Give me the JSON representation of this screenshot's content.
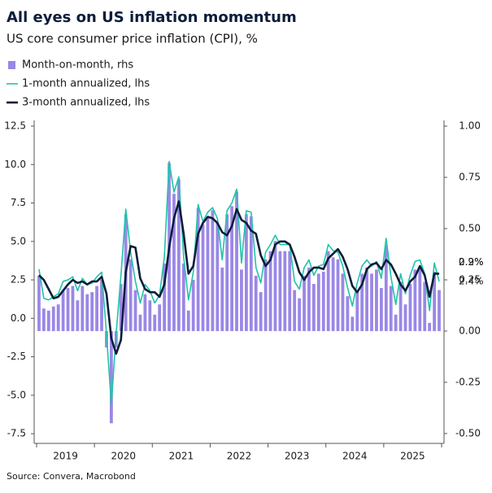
{
  "chart_data": {
    "type": "combo",
    "title": "All eyes on US inflation momentum",
    "subtitle": "US core consumer price inflation (CPI), %",
    "source": "Source: Convera, Macrobond",
    "categories": [
      null,
      null,
      null,
      null,
      null,
      null,
      "2019",
      null,
      null,
      null,
      null,
      null,
      null,
      null,
      null,
      null,
      null,
      null,
      "2020",
      null,
      null,
      null,
      null,
      null,
      null,
      null,
      null,
      null,
      null,
      null,
      "2021",
      null,
      null,
      null,
      null,
      null,
      null,
      null,
      null,
      null,
      null,
      null,
      "2022",
      null,
      null,
      null,
      null,
      null,
      null,
      null,
      null,
      null,
      null,
      null,
      "2023",
      null,
      null,
      null,
      null,
      null,
      null,
      null,
      null,
      null,
      null,
      null,
      "2024",
      null,
      null,
      null,
      null,
      null,
      null,
      null,
      null,
      null,
      null,
      null,
      "2025",
      null,
      null,
      null,
      null,
      null
    ],
    "ylim": [
      -8.13,
      12.87
    ],
    "yticks": [
      {
        "value": 12.5,
        "label": "12.5"
      },
      {
        "value": 10,
        "label": "10.0"
      },
      {
        "value": 7.5,
        "label": "7.5"
      },
      {
        "value": 5,
        "label": "5.0"
      },
      {
        "value": 2.5,
        "label": "2.5"
      },
      {
        "value": 0,
        "label": "0.0"
      },
      {
        "value": -2.5,
        "label": "-2.5"
      },
      {
        "value": -5,
        "label": "-5.0"
      },
      {
        "value": -7.5,
        "label": "-7.5"
      }
    ],
    "y2lim": [
      -0.548,
      1.028
    ],
    "y2ticks": [
      {
        "value": 1,
        "label": "1.00"
      },
      {
        "value": 0.75,
        "label": "0.75"
      },
      {
        "value": 0.5,
        "label": "0.50"
      },
      {
        "value": 0.25,
        "label": "0.25"
      },
      {
        "value": 0,
        "label": "0.00"
      },
      {
        "value": -0.25,
        "label": "-0.25"
      },
      {
        "value": -0.5,
        "label": "-0.50"
      }
    ],
    "series": [
      {
        "name": "Month-on-month, rhs",
        "type": "bar",
        "axis": "y2",
        "color": "#9b87e6",
        "end_label": "0.2%",
        "values": [
          0.27,
          0.11,
          0.1,
          0.12,
          0.13,
          0.2,
          0.21,
          0.22,
          0.15,
          0.22,
          0.18,
          0.19,
          0.22,
          0.25,
          -0.08,
          -0.45,
          -0.08,
          0.23,
          0.57,
          0.35,
          0.2,
          0.08,
          0.18,
          0.15,
          0.08,
          0.13,
          0.33,
          0.82,
          0.67,
          0.74,
          0.33,
          0.1,
          0.25,
          0.6,
          0.52,
          0.56,
          0.59,
          0.53,
          0.31,
          0.57,
          0.61,
          0.68,
          0.3,
          0.57,
          0.56,
          0.27,
          0.19,
          0.35,
          0.39,
          0.44,
          0.39,
          0.39,
          0.39,
          0.2,
          0.16,
          0.27,
          0.31,
          0.23,
          0.28,
          0.29,
          0.39,
          0.36,
          0.35,
          0.28,
          0.17,
          0.07,
          0.19,
          0.28,
          0.31,
          0.28,
          0.3,
          0.21,
          0.42,
          0.22,
          0.08,
          0.24,
          0.13,
          0.23,
          0.3,
          0.31,
          0.24,
          0.04,
          0.29,
          0.2
        ]
      },
      {
        "name": "1-month annualized, lhs",
        "type": "line",
        "color": "#1fc4a8",
        "width": 1.6,
        "end_label": "2.4%",
        "values": [
          3.2,
          1.3,
          1.2,
          1.4,
          1.6,
          2.4,
          2.5,
          2.7,
          1.8,
          2.6,
          2.2,
          2.3,
          2.7,
          3.0,
          -1.0,
          -5.6,
          -1.0,
          2.8,
          7.1,
          4.3,
          2.4,
          1.0,
          2.2,
          1.8,
          1.0,
          1.5,
          4.0,
          10.2,
          8.2,
          9.2,
          4.0,
          1.2,
          3.0,
          7.4,
          6.3,
          6.9,
          7.2,
          6.5,
          3.8,
          7.0,
          7.5,
          8.4,
          3.6,
          7.0,
          6.9,
          3.3,
          2.3,
          4.3,
          4.8,
          5.4,
          4.8,
          4.8,
          4.8,
          2.4,
          1.9,
          3.3,
          3.8,
          2.8,
          3.4,
          3.5,
          4.8,
          4.4,
          4.3,
          3.4,
          2.0,
          0.8,
          2.3,
          3.4,
          3.8,
          3.4,
          3.7,
          2.6,
          5.2,
          2.7,
          0.9,
          2.9,
          1.6,
          2.8,
          3.7,
          3.8,
          2.9,
          0.5,
          3.6,
          2.4
        ]
      },
      {
        "name": "3-month annualized, lhs",
        "type": "line",
        "color": "#0b1d3a",
        "width": 2.6,
        "end_label": "2.9%",
        "values": [
          2.8,
          2.5,
          1.9,
          1.3,
          1.4,
          1.8,
          2.2,
          2.5,
          2.3,
          2.4,
          2.2,
          2.4,
          2.4,
          2.7,
          1.6,
          -1.3,
          -2.3,
          -1.4,
          3.0,
          4.7,
          4.6,
          2.6,
          1.9,
          1.7,
          1.7,
          1.4,
          2.2,
          4.6,
          6.5,
          7.6,
          5.5,
          2.9,
          3.4,
          5.5,
          6.2,
          6.6,
          6.5,
          6.2,
          5.6,
          5.4,
          6.0,
          7.1,
          6.4,
          6.2,
          5.7,
          5.5,
          4.1,
          3.4,
          3.8,
          4.8,
          5.0,
          5.0,
          4.8,
          4.0,
          3.0,
          2.5,
          3.0,
          3.3,
          3.3,
          3.2,
          3.9,
          4.2,
          4.5,
          4.0,
          3.2,
          2.1,
          1.7,
          2.2,
          3.2,
          3.5,
          3.6,
          3.2,
          3.8,
          3.5,
          2.9,
          2.2,
          1.8,
          2.4,
          2.7,
          3.4,
          2.8,
          1.4,
          2.9,
          2.9
        ]
      }
    ]
  }
}
